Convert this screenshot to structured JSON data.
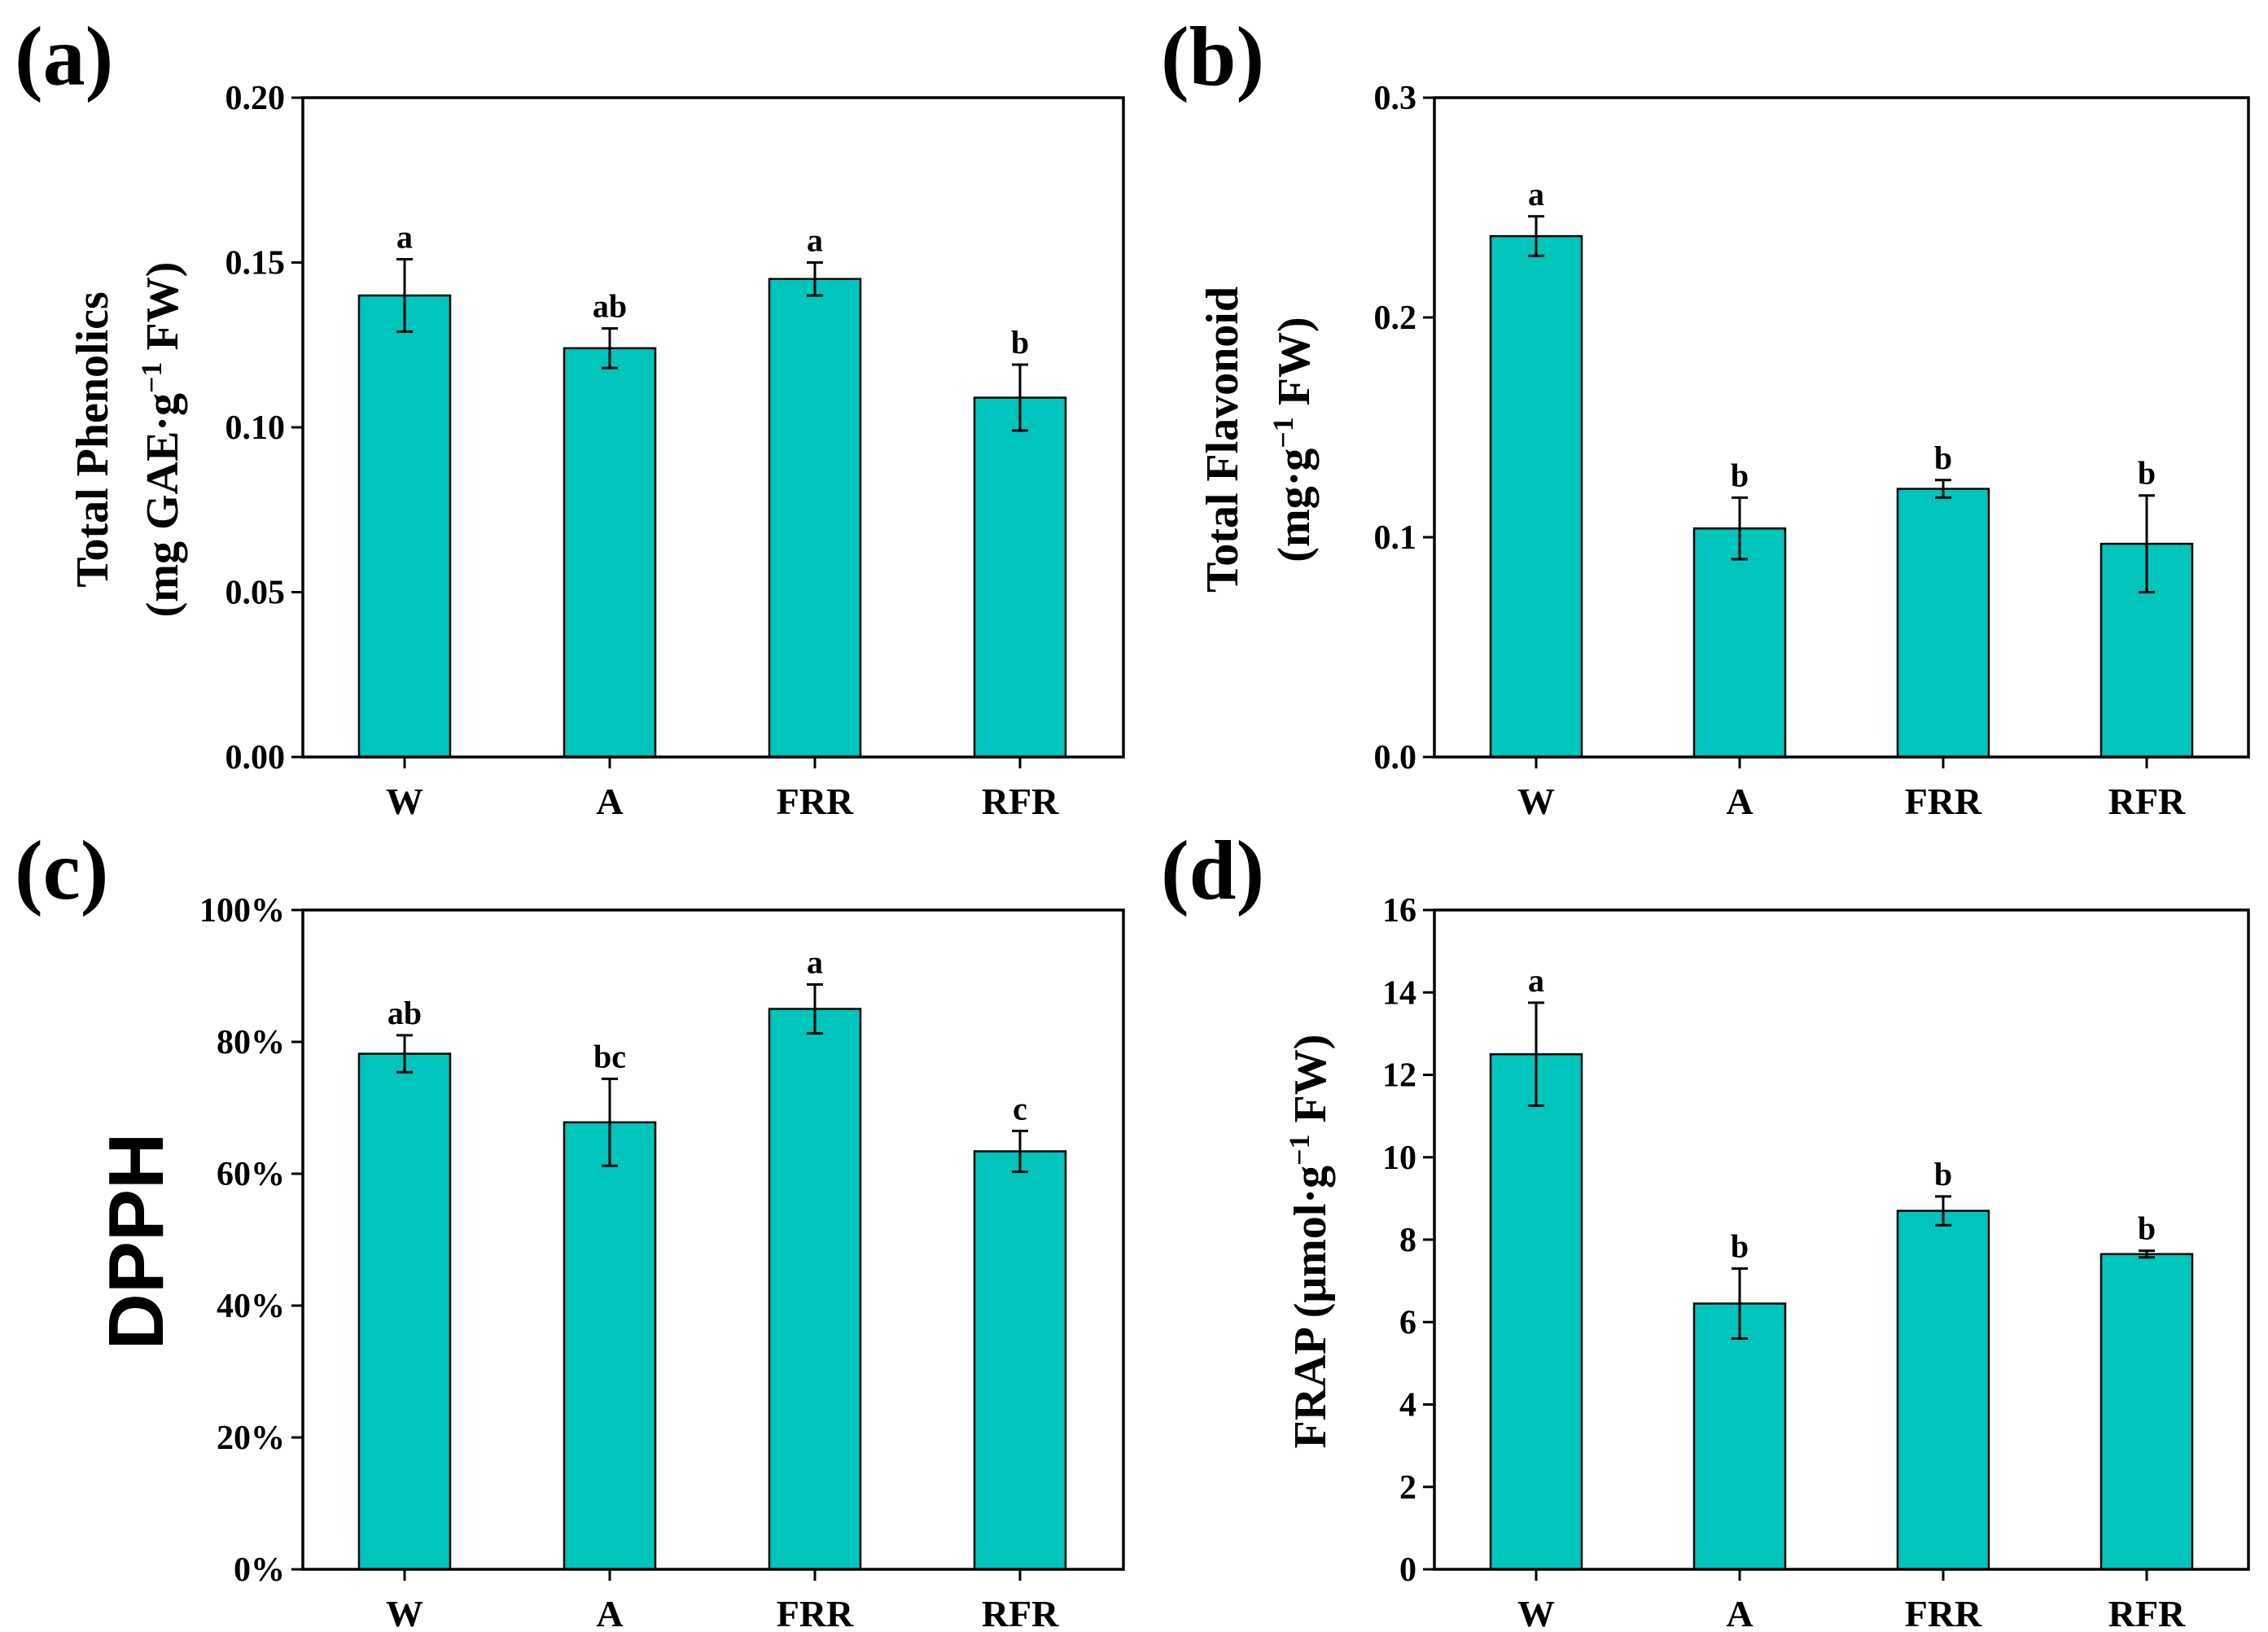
{
  "colors": {
    "bar": "#00c5bc",
    "stroke": "#000000",
    "background": "#ffffff"
  },
  "chart_data": [
    {
      "id": "a",
      "panel_label": "(a)",
      "type": "bar",
      "categories": [
        "W",
        "A",
        "FRR",
        "RFR"
      ],
      "values": [
        0.14,
        0.124,
        0.145,
        0.109
      ],
      "errors": [
        0.011,
        0.006,
        0.005,
        0.01
      ],
      "sig_letters": [
        "a",
        "ab",
        "a",
        "b"
      ],
      "ylim": [
        0,
        0.2
      ],
      "yticks": [
        0,
        0.05,
        0.1,
        0.15,
        0.2
      ],
      "ytick_labels": [
        "0.00",
        "0.05",
        "0.10",
        "0.15",
        "0.20"
      ],
      "ylabel_line1": "Total Phenolics",
      "ylabel_line2_pre": "(mg GAE·g",
      "ylabel_sup": "−1",
      "ylabel_line2_post": " FW)"
    },
    {
      "id": "b",
      "panel_label": "(b)",
      "type": "bar",
      "categories": [
        "W",
        "A",
        "FRR",
        "RFR"
      ],
      "values": [
        0.237,
        0.104,
        0.122,
        0.097
      ],
      "errors": [
        0.009,
        0.014,
        0.004,
        0.022
      ],
      "sig_letters": [
        "a",
        "b",
        "b",
        "b"
      ],
      "ylim": [
        0,
        0.3
      ],
      "yticks": [
        0,
        0.1,
        0.2,
        0.3
      ],
      "ytick_labels": [
        "0.0",
        "0.1",
        "0.2",
        "0.3"
      ],
      "ylabel_line1": "Total  Flavonoid",
      "ylabel_line2_pre": "(mg·g",
      "ylabel_sup": "−1",
      "ylabel_line2_post": "  FW)"
    },
    {
      "id": "c",
      "panel_label": "(c)",
      "type": "bar",
      "categories": [
        "W",
        "A",
        "FRR",
        "RFR"
      ],
      "values": [
        78.2,
        67.8,
        85.0,
        63.4
      ],
      "errors": [
        2.8,
        6.6,
        3.7,
        3.1
      ],
      "sig_letters": [
        "ab",
        "bc",
        "a",
        "c"
      ],
      "ylim": [
        0,
        100
      ],
      "yticks": [
        0,
        20,
        40,
        60,
        80,
        100
      ],
      "ytick_labels": [
        "0%",
        "20%",
        "40%",
        "60%",
        "80%",
        "100%"
      ],
      "ylabel": "DPPH"
    },
    {
      "id": "d",
      "panel_label": "(d)",
      "type": "bar",
      "categories": [
        "W",
        "A",
        "FRR",
        "RFR"
      ],
      "values": [
        12.5,
        6.45,
        8.7,
        7.65
      ],
      "errors": [
        1.25,
        0.85,
        0.35,
        0.08
      ],
      "sig_letters": [
        "a",
        "b",
        "b",
        "b"
      ],
      "ylim": [
        0,
        16
      ],
      "yticks": [
        0,
        2,
        4,
        6,
        8,
        10,
        12,
        14,
        16
      ],
      "ytick_labels": [
        "0",
        "2",
        "4",
        "6",
        "8",
        "10",
        "12",
        "14",
        "16"
      ],
      "ylabel_pre": "FRAP  (μmol·g",
      "ylabel_sup": "−1",
      "ylabel_post": "  FW)"
    }
  ]
}
